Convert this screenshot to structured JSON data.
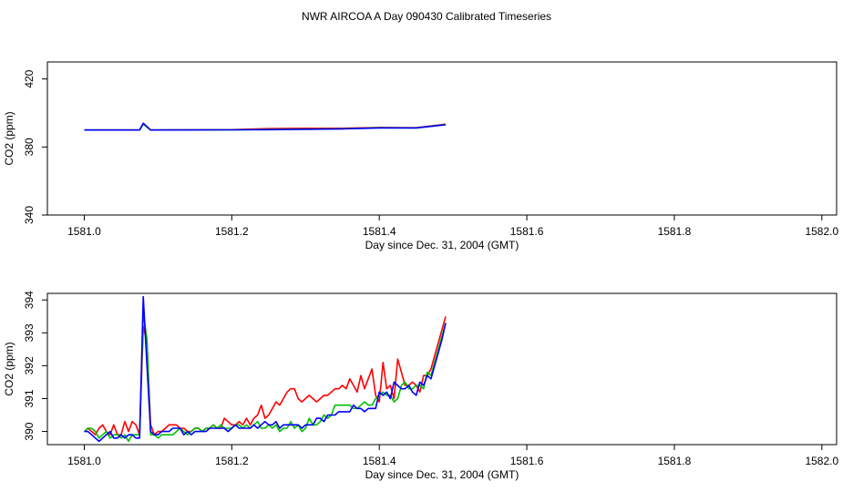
{
  "title": "NWR AIRCOA A  Day 090430  Calibrated Timeseries",
  "colors": {
    "s1": "#ff0000",
    "s2": "#00c000",
    "s3": "#0000ff"
  },
  "chart_data": [
    {
      "type": "line",
      "xlabel": "Day since Dec. 31, 2004 (GMT)",
      "ylabel": "CO2 (ppm)",
      "xlim": [
        1580.95,
        1582.02
      ],
      "ylim": [
        340,
        430
      ],
      "xticks": [
        "1581.0",
        "1581.2",
        "1581.4",
        "1581.6",
        "1581.8",
        "1582.0"
      ],
      "yticks": [
        "340",
        "380",
        "420"
      ],
      "x": [
        1581.0,
        1581.075,
        1581.08,
        1581.09,
        1581.2,
        1581.25,
        1581.3,
        1581.35,
        1581.4,
        1581.45,
        1581.49
      ],
      "series": [
        {
          "name": "s1",
          "values": [
            390.0,
            390.0,
            393.5,
            390.0,
            390.2,
            390.8,
            391.0,
            391.0,
            391.5,
            391.3,
            393.4
          ]
        },
        {
          "name": "s2",
          "values": [
            390.0,
            390.0,
            393.5,
            390.0,
            390.1,
            390.3,
            390.5,
            390.7,
            391.3,
            391.2,
            393.2
          ]
        },
        {
          "name": "s3",
          "values": [
            390.0,
            390.0,
            394.0,
            390.0,
            390.1,
            390.2,
            390.4,
            390.7,
            391.2,
            391.2,
            393.1
          ]
        }
      ]
    },
    {
      "type": "line",
      "xlabel": "Day since Dec. 31, 2004 (GMT)",
      "ylabel": "CO2 (ppm)",
      "xlim": [
        1580.95,
        1582.02
      ],
      "ylim": [
        389.6,
        394.2
      ],
      "xticks": [
        "1581.0",
        "1581.2",
        "1581.4",
        "1581.6",
        "1581.8",
        "1582.0"
      ],
      "yticks": [
        "390",
        "391",
        "392",
        "393",
        "394"
      ],
      "x": [
        1581.0,
        1581.005,
        1581.01,
        1581.015,
        1581.02,
        1581.025,
        1581.03,
        1581.035,
        1581.04,
        1581.045,
        1581.05,
        1581.055,
        1581.06,
        1581.065,
        1581.07,
        1581.075,
        1581.08,
        1581.085,
        1581.09,
        1581.095,
        1581.1,
        1581.105,
        1581.11,
        1581.115,
        1581.12,
        1581.125,
        1581.13,
        1581.135,
        1581.14,
        1581.145,
        1581.15,
        1581.155,
        1581.16,
        1581.165,
        1581.17,
        1581.175,
        1581.18,
        1581.185,
        1581.19,
        1581.195,
        1581.2,
        1581.205,
        1581.21,
        1581.215,
        1581.22,
        1581.225,
        1581.23,
        1581.235,
        1581.24,
        1581.245,
        1581.25,
        1581.255,
        1581.26,
        1581.265,
        1581.27,
        1581.275,
        1581.28,
        1581.285,
        1581.29,
        1581.295,
        1581.3,
        1581.305,
        1581.31,
        1581.315,
        1581.32,
        1581.325,
        1581.33,
        1581.335,
        1581.34,
        1581.345,
        1581.35,
        1581.355,
        1581.36,
        1581.365,
        1581.37,
        1581.375,
        1581.38,
        1581.385,
        1581.39,
        1581.395,
        1581.4,
        1581.405,
        1581.41,
        1581.415,
        1581.42,
        1581.425,
        1581.43,
        1581.435,
        1581.44,
        1581.445,
        1581.45,
        1581.455,
        1581.46,
        1581.465,
        1581.47,
        1581.475,
        1581.48,
        1581.485,
        1581.49
      ],
      "series": [
        {
          "name": "s1",
          "values": [
            390.0,
            390.1,
            390.0,
            389.9,
            390.1,
            390.2,
            390.0,
            389.9,
            390.2,
            389.9,
            389.9,
            390.3,
            390.0,
            390.3,
            390.2,
            389.9,
            393.2,
            392.7,
            390.2,
            389.9,
            390.0,
            390.0,
            390.1,
            390.2,
            390.2,
            390.2,
            390.1,
            390.1,
            390.0,
            390.0,
            390.1,
            390.1,
            390.0,
            390.1,
            390.1,
            390.2,
            390.1,
            390.1,
            390.4,
            390.3,
            390.2,
            390.2,
            390.3,
            390.2,
            390.4,
            390.2,
            390.4,
            390.5,
            390.8,
            390.4,
            390.5,
            390.7,
            390.9,
            390.8,
            391.0,
            391.2,
            391.3,
            391.3,
            391.0,
            390.9,
            391.0,
            391.1,
            391.0,
            390.9,
            391.0,
            391.1,
            391.1,
            391.2,
            391.3,
            391.3,
            391.4,
            391.3,
            391.6,
            391.4,
            391.2,
            391.7,
            391.3,
            391.6,
            391.9,
            391.1,
            390.9,
            392.1,
            391.3,
            391.4,
            391.0,
            392.2,
            391.8,
            391.4,
            391.4,
            391.5,
            391.4,
            391.2,
            391.7,
            391.7,
            391.9,
            392.3,
            392.7,
            393.1,
            393.5
          ]
        },
        {
          "name": "s2",
          "values": [
            390.0,
            390.1,
            390.1,
            390.0,
            389.8,
            389.9,
            390.0,
            389.8,
            389.9,
            389.9,
            389.8,
            389.9,
            389.7,
            389.9,
            389.9,
            389.9,
            393.6,
            392.8,
            389.9,
            389.9,
            389.8,
            389.9,
            389.9,
            389.9,
            389.9,
            390.0,
            390.1,
            390.0,
            389.9,
            390.0,
            390.1,
            390.1,
            390.0,
            390.1,
            390.1,
            390.2,
            390.1,
            390.2,
            390.1,
            390.1,
            390.1,
            390.2,
            390.2,
            390.1,
            390.2,
            390.1,
            390.2,
            390.3,
            390.1,
            390.1,
            390.2,
            390.1,
            390.2,
            390.0,
            390.1,
            390.1,
            390.3,
            390.1,
            390.2,
            390.0,
            390.1,
            390.4,
            390.2,
            390.2,
            390.3,
            390.5,
            390.4,
            390.5,
            390.8,
            390.8,
            390.8,
            390.8,
            390.8,
            390.7,
            390.7,
            390.8,
            390.9,
            390.8,
            390.8,
            391.0,
            391.1,
            391.2,
            391.1,
            391.1,
            390.9,
            391.0,
            391.4,
            391.5,
            391.3,
            391.3,
            391.4,
            391.4,
            391.3,
            391.8,
            391.7,
            392.1,
            392.5,
            392.9,
            393.3
          ]
        },
        {
          "name": "s3",
          "values": [
            390.0,
            390.0,
            389.9,
            389.8,
            389.7,
            389.8,
            389.9,
            390.0,
            389.8,
            389.8,
            389.9,
            389.8,
            389.9,
            389.9,
            389.8,
            389.8,
            394.1,
            392.0,
            390.0,
            389.9,
            389.9,
            390.0,
            390.0,
            390.0,
            390.1,
            390.1,
            390.1,
            389.9,
            390.0,
            389.9,
            390.0,
            390.0,
            390.0,
            390.0,
            390.1,
            390.1,
            390.1,
            390.1,
            390.1,
            390.0,
            390.1,
            390.2,
            390.1,
            390.1,
            390.1,
            390.1,
            390.2,
            390.1,
            390.2,
            390.3,
            390.2,
            390.2,
            390.3,
            390.1,
            390.2,
            390.2,
            390.2,
            390.2,
            390.2,
            390.1,
            390.2,
            390.2,
            390.2,
            390.4,
            390.4,
            390.3,
            390.5,
            390.5,
            390.5,
            390.6,
            390.6,
            390.6,
            390.6,
            390.8,
            390.7,
            390.7,
            390.6,
            390.7,
            390.7,
            390.7,
            391.2,
            391.1,
            391.2,
            391.0,
            391.5,
            391.4,
            391.3,
            391.3,
            391.4,
            391.2,
            391.1,
            391.5,
            391.4,
            391.7,
            391.6,
            392.0,
            392.4,
            392.8,
            393.3
          ]
        }
      ]
    }
  ]
}
